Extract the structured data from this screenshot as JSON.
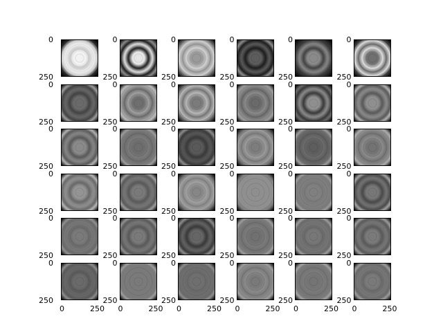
{
  "figure": {
    "grid": {
      "rows": 6,
      "cols": 6
    },
    "axis_tick_labels": {
      "y_top": "0",
      "y_bottom": "250",
      "x_left": "0",
      "x_right": "250"
    },
    "colormap": "gray",
    "panels": [
      {
        "row": 0,
        "col": 0,
        "ring": "#cccccc",
        "center": "#f2f2f2",
        "edge": "#2a2a2a"
      },
      {
        "row": 0,
        "col": 1,
        "ring": "#222222",
        "center": "#e6e6e6",
        "edge": "#888888"
      },
      {
        "row": 0,
        "col": 2,
        "ring": "#d0d0d0",
        "center": "#9a9a9a",
        "edge": "#6f6f6f"
      },
      {
        "row": 0,
        "col": 3,
        "ring": "#1e1e1e",
        "center": "#5c5c5c",
        "edge": "#8a8a8a"
      },
      {
        "row": 0,
        "col": 4,
        "ring": "#444444",
        "center": "#8a8a8a",
        "edge": "#2a2a2a"
      },
      {
        "row": 0,
        "col": 5,
        "ring": "#dcdcdc",
        "center": "#707070",
        "edge": "#3f3f3f"
      },
      {
        "row": 1,
        "col": 0,
        "ring": "#444444",
        "center": "#6a6a6a",
        "edge": "#9a9a9a"
      },
      {
        "row": 1,
        "col": 1,
        "ring": "#9f9f9f",
        "center": "#6f6f6f",
        "edge": "#b7b7b7"
      },
      {
        "row": 1,
        "col": 2,
        "ring": "#b7b7b7",
        "center": "#7b7b7b",
        "edge": "#6a6a6a"
      },
      {
        "row": 1,
        "col": 3,
        "ring": "#8a8a8a",
        "center": "#6a6a6a",
        "edge": "#9a9a9a"
      },
      {
        "row": 1,
        "col": 4,
        "ring": "#3a3a3a",
        "center": "#8f8f8f",
        "edge": "#6a6a6a"
      },
      {
        "row": 1,
        "col": 5,
        "ring": "#5a5a5a",
        "center": "#8f8f8f",
        "edge": "#b0b0b0"
      },
      {
        "row": 2,
        "col": 0,
        "ring": "#5a5a5a",
        "center": "#8a8a8a",
        "edge": "#b0b0b0"
      },
      {
        "row": 2,
        "col": 1,
        "ring": "#7a7a7a",
        "center": "#6d6d6d",
        "edge": "#9a9a9a"
      },
      {
        "row": 2,
        "col": 2,
        "ring": "#3a3a3a",
        "center": "#595959",
        "edge": "#8a8a8a"
      },
      {
        "row": 2,
        "col": 3,
        "ring": "#9a9a9a",
        "center": "#7d7d7d",
        "edge": "#6a6a6a"
      },
      {
        "row": 2,
        "col": 4,
        "ring": "#6a6a6a",
        "center": "#5d5d5d",
        "edge": "#9a9a9a"
      },
      {
        "row": 2,
        "col": 5,
        "ring": "#8a8a8a",
        "center": "#737373",
        "edge": "#aaaaaa"
      },
      {
        "row": 3,
        "col": 0,
        "ring": "#6a6a6a",
        "center": "#949494",
        "edge": "#b3b3b3"
      },
      {
        "row": 3,
        "col": 1,
        "ring": "#5a5a5a",
        "center": "#7a7a7a",
        "edge": "#9a9a9a"
      },
      {
        "row": 3,
        "col": 2,
        "ring": "#a0a0a0",
        "center": "#868686",
        "edge": "#6a6a6a"
      },
      {
        "row": 3,
        "col": 3,
        "ring": "#8f8f8f",
        "center": "#8f8f8f",
        "edge": "#7a7a7a"
      },
      {
        "row": 3,
        "col": 4,
        "ring": "#7a7a7a",
        "center": "#808080",
        "edge": "#9a9a9a"
      },
      {
        "row": 3,
        "col": 5,
        "ring": "#4a4a4a",
        "center": "#777777",
        "edge": "#a0a0a0"
      },
      {
        "row": 4,
        "col": 0,
        "ring": "#6a6a6a",
        "center": "#7a7a7a",
        "edge": "#8f8f8f"
      },
      {
        "row": 4,
        "col": 1,
        "ring": "#5a5a5a",
        "center": "#7a7a7a",
        "edge": "#8f8f8f"
      },
      {
        "row": 4,
        "col": 2,
        "ring": "#3a3a3a",
        "center": "#666666",
        "edge": "#8a8a8a"
      },
      {
        "row": 4,
        "col": 3,
        "ring": "#7a7a7a",
        "center": "#707070",
        "edge": "#9a9a9a"
      },
      {
        "row": 4,
        "col": 4,
        "ring": "#6a6a6a",
        "center": "#777777",
        "edge": "#9a9a9a"
      },
      {
        "row": 4,
        "col": 5,
        "ring": "#5a5a5a",
        "center": "#7a7a7a",
        "edge": "#9a9a9a"
      },
      {
        "row": 5,
        "col": 0,
        "ring": "#5a5a5a",
        "center": "#6a6a6a",
        "edge": "#8a8a8a"
      },
      {
        "row": 5,
        "col": 1,
        "ring": "#7a7a7a",
        "center": "#7a7a7a",
        "edge": "#9a9a9a"
      },
      {
        "row": 5,
        "col": 2,
        "ring": "#6a6a6a",
        "center": "#6f6f6f",
        "edge": "#8a8a8a"
      },
      {
        "row": 5,
        "col": 3,
        "ring": "#8a8a8a",
        "center": "#7a7a7a",
        "edge": "#9a9a9a"
      },
      {
        "row": 5,
        "col": 4,
        "ring": "#7a7a7a",
        "center": "#747474",
        "edge": "#a0a0a0"
      },
      {
        "row": 5,
        "col": 5,
        "ring": "#6a6a6a",
        "center": "#7a7a7a",
        "edge": "#9a9a9a"
      }
    ]
  }
}
